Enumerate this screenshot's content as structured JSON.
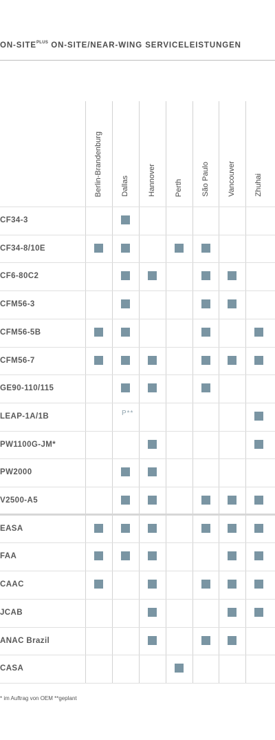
{
  "header": {
    "title_prefix": "ON-SITE",
    "title_sup": "PLUS",
    "title_rest": " ON-SITE/NEAR-WING SERVICELEISTUNGEN"
  },
  "locations": [
    "Berlin-Brandenburg",
    "Dallas",
    "Hannover",
    "Perth",
    "São Paulo",
    "Vancouver",
    "Zhuhai"
  ],
  "engines": [
    {
      "name": "CF34-3",
      "cells": [
        "",
        "x",
        "",
        "",
        "",
        "",
        ""
      ]
    },
    {
      "name": "CF34-8/10E",
      "cells": [
        "x",
        "x",
        "",
        "x",
        "x",
        "",
        ""
      ]
    },
    {
      "name": "CF6-80C2",
      "cells": [
        "",
        "x",
        "x",
        "",
        "x",
        "x",
        ""
      ]
    },
    {
      "name": "CFM56-3",
      "cells": [
        "",
        "x",
        "",
        "",
        "x",
        "x",
        ""
      ]
    },
    {
      "name": "CFM56-5B",
      "cells": [
        "x",
        "x",
        "",
        "",
        "x",
        "",
        "x"
      ]
    },
    {
      "name": "CFM56-7",
      "cells": [
        "x",
        "x",
        "x",
        "",
        "x",
        "x",
        "x"
      ]
    },
    {
      "name": "GE90-110/115",
      "cells": [
        "",
        "x",
        "x",
        "",
        "x",
        "",
        ""
      ]
    },
    {
      "name": "LEAP-1A/1B",
      "cells": [
        "",
        "P**",
        "",
        "",
        "",
        "",
        "x"
      ]
    },
    {
      "name": "PW1100G-JM*",
      "cells": [
        "",
        "",
        "x",
        "",
        "",
        "",
        "x"
      ]
    },
    {
      "name": "PW2000",
      "cells": [
        "",
        "x",
        "x",
        "",
        "",
        "",
        ""
      ]
    },
    {
      "name": "V2500-A5",
      "cells": [
        "",
        "x",
        "x",
        "",
        "x",
        "x",
        "x"
      ]
    }
  ],
  "certifications": [
    {
      "name": "EASA",
      "cells": [
        "x",
        "x",
        "x",
        "",
        "x",
        "x",
        "x"
      ]
    },
    {
      "name": "FAA",
      "cells": [
        "x",
        "x",
        "x",
        "",
        "",
        "x",
        "x"
      ]
    },
    {
      "name": "CAAC",
      "cells": [
        "x",
        "",
        "x",
        "",
        "x",
        "x",
        "x"
      ]
    },
    {
      "name": "JCAB",
      "cells": [
        "",
        "",
        "x",
        "",
        "",
        "x",
        "x"
      ]
    },
    {
      "name": "ANAC Brazil",
      "cells": [
        "",
        "",
        "x",
        "",
        "x",
        "x",
        ""
      ]
    },
    {
      "name": "CASA",
      "cells": [
        "",
        "",
        "",
        "x",
        "",
        "",
        ""
      ]
    }
  ],
  "footnote": "* im Auftrag von OEM  **geplant",
  "colors": {
    "mark": "#7a95a3",
    "planned": "#8fa3ae"
  }
}
